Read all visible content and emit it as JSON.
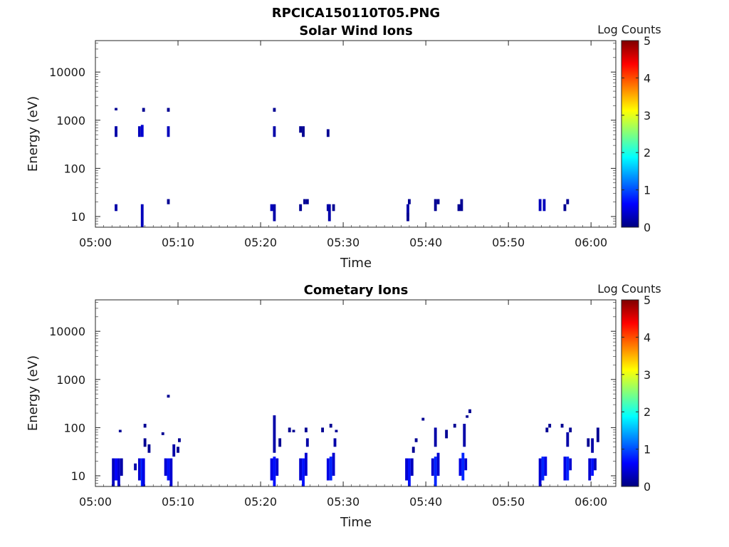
{
  "figure_title": "RPCICA150110T05.PNG",
  "colorbar_palette": [
    "#00007f",
    "#0000ff",
    "#007fff",
    "#00ffff",
    "#7fff7f",
    "#ffff00",
    "#ff7f00",
    "#ff0000",
    "#7f0000"
  ],
  "chart_data": [
    {
      "type": "heatmap",
      "title": "Solar Wind Ions",
      "xlabel": "Time",
      "ylabel": "Energy (eV)",
      "x_ticks": [
        "05:00",
        "05:10",
        "05:20",
        "05:30",
        "05:40",
        "05:50",
        "06:00"
      ],
      "xlim": [
        "05:00",
        "06:03"
      ],
      "y_scale": "log",
      "y_ticks": [
        "10",
        "100",
        "1000",
        "10000"
      ],
      "ylim": [
        6,
        45000
      ],
      "colorbar_label": "Log Counts",
      "colorbar_ticks": [
        "0",
        "1",
        "2",
        "3",
        "4",
        "5"
      ],
      "colorbar_range": [
        0,
        5
      ],
      "cells": [
        [
          "05:02:30",
          1600,
          1800,
          0.1
        ],
        [
          "05:02:30",
          450,
          750,
          0.2
        ],
        [
          "05:02:30",
          13,
          18,
          0.2
        ],
        [
          "05:05:20",
          450,
          750,
          0.3
        ],
        [
          "05:05:40",
          450,
          800,
          0.4
        ],
        [
          "05:05:50",
          1500,
          1800,
          0.1
        ],
        [
          "05:05:40",
          6,
          18,
          0.3
        ],
        [
          "05:08:50",
          450,
          750,
          0.3
        ],
        [
          "05:08:50",
          1500,
          1800,
          0.1
        ],
        [
          "05:08:50",
          18,
          23,
          0.1
        ],
        [
          "05:21:40",
          1500,
          1800,
          0.1
        ],
        [
          "05:21:40",
          450,
          750,
          0.2
        ],
        [
          "05:21:20",
          13,
          18,
          0.3
        ],
        [
          "05:21:40",
          8,
          18,
          0.2
        ],
        [
          "05:24:50",
          550,
          750,
          0.1
        ],
        [
          "05:25:10",
          450,
          750,
          0.1
        ],
        [
          "05:24:50",
          13,
          18,
          0.1
        ],
        [
          "05:25:20",
          18,
          23,
          0.1
        ],
        [
          "05:25:40",
          18,
          23,
          0.1
        ],
        [
          "05:28:10",
          450,
          650,
          0.1
        ],
        [
          "05:28:10",
          13,
          18,
          0.2
        ],
        [
          "05:28:20",
          8,
          18,
          0.2
        ],
        [
          "05:28:50",
          13,
          18,
          0.1
        ],
        [
          "05:37:50",
          10,
          18,
          0.2
        ],
        [
          "05:38:00",
          18,
          23,
          0.1
        ],
        [
          "05:37:50",
          8,
          12,
          0.1
        ],
        [
          "05:41:10",
          13,
          23,
          0.1
        ],
        [
          "05:41:30",
          18,
          23,
          0.1
        ],
        [
          "05:44:00",
          13,
          18,
          0.1
        ],
        [
          "05:44:20",
          13,
          23,
          0.1
        ],
        [
          "05:53:50",
          13,
          23,
          0.3
        ],
        [
          "05:54:20",
          13,
          23,
          0.3
        ],
        [
          "05:56:50",
          13,
          18,
          0.1
        ],
        [
          "05:57:10",
          18,
          23,
          0.1
        ]
      ]
    },
    {
      "type": "heatmap",
      "title": "Cometary Ions",
      "xlabel": "Time",
      "ylabel": "Energy (eV)",
      "x_ticks": [
        "05:00",
        "05:10",
        "05:20",
        "05:30",
        "05:40",
        "05:50",
        "06:00"
      ],
      "xlim": [
        "05:00",
        "06:03"
      ],
      "y_scale": "log",
      "y_ticks": [
        "10",
        "100",
        "1000",
        "10000"
      ],
      "ylim": [
        6,
        45000
      ],
      "colorbar_label": "Log Counts",
      "colorbar_ticks": [
        "0",
        "1",
        "2",
        "3",
        "4",
        "5"
      ],
      "colorbar_range": [
        0,
        5
      ],
      "cells": [
        [
          "05:02:10",
          6,
          23,
          0.3
        ],
        [
          "05:02:30",
          8,
          23,
          0.6
        ],
        [
          "05:02:50",
          6,
          23,
          0.4
        ],
        [
          "05:03:10",
          10,
          23,
          0.2
        ],
        [
          "05:03:00",
          80,
          90,
          0.1
        ],
        [
          "05:04:50",
          13,
          18,
          0.2
        ],
        [
          "05:05:20",
          8,
          23,
          0.4
        ],
        [
          "05:05:40",
          6,
          23,
          0.8
        ],
        [
          "05:05:50",
          6,
          23,
          0.5
        ],
        [
          "05:06:00",
          40,
          60,
          0.1
        ],
        [
          "05:06:00",
          100,
          120,
          0.1
        ],
        [
          "05:06:30",
          30,
          45,
          0.1
        ],
        [
          "05:08:30",
          10,
          23,
          0.4
        ],
        [
          "05:08:50",
          8,
          23,
          0.7
        ],
        [
          "05:09:10",
          6,
          23,
          0.4
        ],
        [
          "05:09:30",
          25,
          45,
          0.2
        ],
        [
          "05:08:50",
          420,
          480,
          0.1
        ],
        [
          "05:08:10",
          70,
          80,
          0.1
        ],
        [
          "05:10:00",
          30,
          40,
          0.1
        ],
        [
          "05:10:10",
          50,
          60,
          0.1
        ],
        [
          "05:21:20",
          8,
          23,
          0.5
        ],
        [
          "05:21:40",
          6,
          25,
          0.7
        ],
        [
          "05:21:40",
          30,
          180,
          0.2
        ],
        [
          "05:22:00",
          10,
          23,
          0.4
        ],
        [
          "05:22:20",
          40,
          60,
          0.1
        ],
        [
          "05:24:50",
          8,
          23,
          0.4
        ],
        [
          "05:25:10",
          6,
          23,
          0.7
        ],
        [
          "05:25:30",
          10,
          30,
          0.4
        ],
        [
          "05:25:40",
          40,
          60,
          0.2
        ],
        [
          "05:23:30",
          80,
          100,
          0.1
        ],
        [
          "05:24:00",
          80,
          90,
          0.1
        ],
        [
          "05:25:30",
          80,
          100,
          0.1
        ],
        [
          "05:28:10",
          8,
          23,
          0.5
        ],
        [
          "05:28:30",
          8,
          25,
          0.8
        ],
        [
          "05:28:50",
          10,
          30,
          0.4
        ],
        [
          "05:29:00",
          40,
          60,
          0.2
        ],
        [
          "05:27:30",
          80,
          100,
          0.1
        ],
        [
          "05:28:30",
          100,
          120,
          0.1
        ],
        [
          "05:29:10",
          80,
          90,
          0.1
        ],
        [
          "05:37:40",
          8,
          23,
          0.4
        ],
        [
          "05:38:00",
          6,
          23,
          0.7
        ],
        [
          "05:38:20",
          10,
          23,
          0.3
        ],
        [
          "05:38:30",
          30,
          40,
          0.1
        ],
        [
          "05:39:40",
          140,
          160,
          0.1
        ],
        [
          "05:38:50",
          50,
          60,
          0.1
        ],
        [
          "05:40:50",
          10,
          23,
          0.4
        ],
        [
          "05:41:10",
          6,
          25,
          0.8
        ],
        [
          "05:41:30",
          10,
          30,
          0.4
        ],
        [
          "05:41:10",
          40,
          100,
          0.2
        ],
        [
          "05:42:30",
          60,
          90,
          0.1
        ],
        [
          "05:44:10",
          10,
          23,
          0.5
        ],
        [
          "05:44:30",
          8,
          30,
          0.8
        ],
        [
          "05:44:50",
          13,
          23,
          0.4
        ],
        [
          "05:44:40",
          40,
          120,
          0.2
        ],
        [
          "05:45:20",
          200,
          240,
          0.1
        ],
        [
          "05:45:00",
          160,
          180,
          0.1
        ],
        [
          "05:43:30",
          100,
          120,
          0.1
        ],
        [
          "05:53:50",
          6,
          23,
          0.4
        ],
        [
          "05:54:10",
          8,
          25,
          0.8
        ],
        [
          "05:54:30",
          10,
          25,
          0.5
        ],
        [
          "05:54:40",
          80,
          100,
          0.1
        ],
        [
          "05:55:00",
          100,
          120,
          0.1
        ],
        [
          "05:56:50",
          8,
          25,
          0.5
        ],
        [
          "05:57:10",
          8,
          25,
          0.8
        ],
        [
          "05:57:30",
          13,
          23,
          0.4
        ],
        [
          "05:57:10",
          40,
          80,
          0.2
        ],
        [
          "05:57:30",
          80,
          100,
          0.1
        ],
        [
          "05:56:30",
          100,
          120,
          0.1
        ],
        [
          "05:59:50",
          8,
          23,
          0.4
        ],
        [
          "06:00:10",
          10,
          23,
          0.7
        ],
        [
          "06:00:30",
          13,
          23,
          0.3
        ],
        [
          "06:00:10",
          30,
          60,
          0.2
        ],
        [
          "06:00:50",
          50,
          100,
          0.1
        ],
        [
          "05:59:40",
          40,
          60,
          0.1
        ]
      ]
    }
  ]
}
